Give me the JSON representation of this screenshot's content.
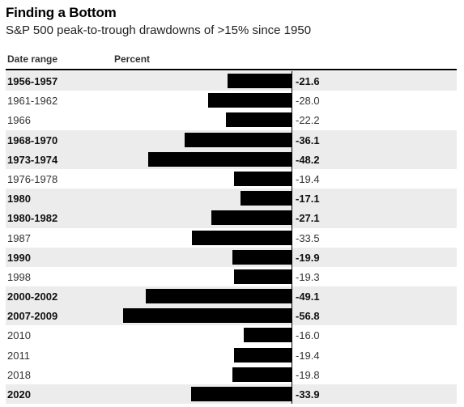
{
  "header": {
    "title": "Finding a Bottom",
    "subtitle": "S&P 500 peak-to-trough drawdowns of >15% since 1950"
  },
  "columns": {
    "date_label": "Date range",
    "value_label": "Percent"
  },
  "chart_data": {
    "type": "bar",
    "orientation": "horizontal",
    "title": "Finding a Bottom",
    "subtitle": "S&P 500 peak-to-trough drawdowns of >15% since 1950",
    "xlabel": "Percent",
    "ylabel": "Date range",
    "xlim": [
      -60,
      0
    ],
    "grid": false,
    "categories": [
      "1956-1957",
      "1961-1962",
      "1966",
      "1968-1970",
      "1973-1974",
      "1976-1978",
      "1980",
      "1980-1982",
      "1987",
      "1990",
      "1998",
      "2000-2002",
      "2007-2009",
      "2010",
      "2011",
      "2018",
      "2020"
    ],
    "values": [
      -21.6,
      -28.0,
      -22.2,
      -36.1,
      -48.2,
      -19.4,
      -17.1,
      -27.1,
      -33.5,
      -19.9,
      -19.3,
      -49.1,
      -56.8,
      -16.0,
      -19.4,
      -19.8,
      -33.9
    ],
    "value_labels": [
      "-21.6",
      "-28.0",
      "-22.2",
      "-36.1",
      "-48.2",
      "-19.4",
      "-17.1",
      "-27.1",
      "-33.5",
      "-19.9",
      "-19.3",
      "-49.1",
      "-56.8",
      "-16.0",
      "-19.4",
      "-19.8",
      "-33.9"
    ],
    "bold_rows": [
      true,
      false,
      false,
      true,
      true,
      false,
      true,
      true,
      false,
      true,
      false,
      true,
      true,
      false,
      false,
      false,
      true
    ],
    "shaded_rows": [
      true,
      false,
      false,
      true,
      true,
      false,
      true,
      true,
      false,
      true,
      false,
      true,
      true,
      false,
      false,
      false,
      true
    ],
    "bar_color": "#000000",
    "shade_color": "#ececec"
  }
}
